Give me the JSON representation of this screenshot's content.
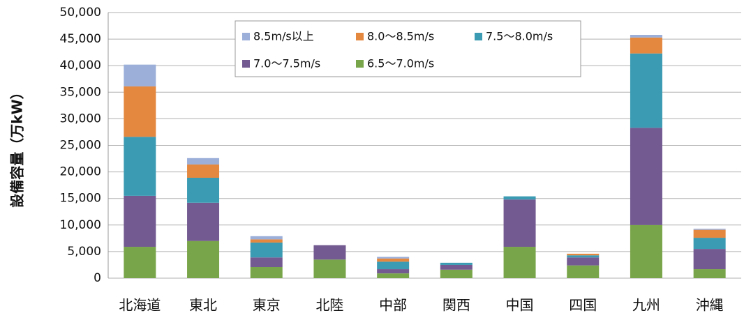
{
  "chart_data": {
    "type": "stacked-bar",
    "y_label": "設備容量（万kW）",
    "categories": [
      "北海道",
      "東北",
      "東京",
      "北陸",
      "中部",
      "関西",
      "中国",
      "四国",
      "九州",
      "沖縄"
    ],
    "series": [
      {
        "name": "6.5〜7.0m/s",
        "color": "#79a54a",
        "values": [
          5900,
          7000,
          2100,
          3500,
          900,
          1600,
          5900,
          2400,
          10000,
          1700
        ]
      },
      {
        "name": "7.0〜7.5m/s",
        "color": "#735a91",
        "values": [
          9600,
          7200,
          1800,
          2700,
          800,
          900,
          8900,
          1500,
          18300,
          3800
        ]
      },
      {
        "name": "7.5〜8.0m/s",
        "color": "#3b9bb3",
        "values": [
          11100,
          4700,
          2800,
          0,
          1400,
          400,
          600,
          400,
          14000,
          2100
        ]
      },
      {
        "name": "8.0〜8.5m/s",
        "color": "#e4883f",
        "values": [
          9500,
          2500,
          600,
          0,
          600,
          0,
          0,
          300,
          3000,
          1500
        ]
      },
      {
        "name": "8.5m/s以上",
        "color": "#9bafd9",
        "values": [
          4100,
          1200,
          600,
          0,
          300,
          0,
          0,
          0,
          500,
          200
        ]
      }
    ],
    "ylim": [
      0,
      50000
    ],
    "yticks": [
      0,
      {
        "value": 5000,
        "label": "5,000"
      },
      {
        "value": 10000,
        "label": "10,000"
      },
      {
        "value": 15000,
        "label": "15,000"
      },
      {
        "value": 20000,
        "label": "20,000"
      },
      {
        "value": 25000,
        "label": "25,000"
      },
      {
        "value": 30000,
        "label": "30,000"
      },
      {
        "value": 35000,
        "label": "35,000"
      },
      {
        "value": 40000,
        "label": "40,000"
      },
      {
        "value": 45000,
        "label": "45,000"
      },
      {
        "value": 50000,
        "label": "50,000"
      }
    ],
    "grid": true
  }
}
